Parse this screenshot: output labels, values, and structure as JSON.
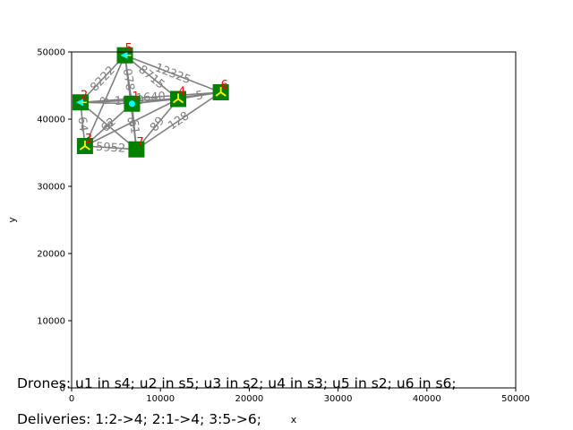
{
  "chart_data": {
    "type": "scatter",
    "title": "",
    "xlabel": "x",
    "ylabel": "y",
    "xlim": [
      0,
      50000
    ],
    "ylim": [
      0,
      50000
    ],
    "xticks": [
      0,
      10000,
      20000,
      30000,
      40000,
      50000
    ],
    "yticks": [
      0,
      10000,
      20000,
      30000,
      40000,
      50000
    ],
    "xtick_labels": [
      "0",
      "10000",
      "20000",
      "30000",
      "40000",
      "50000"
    ],
    "ytick_labels": [
      "0",
      "10000",
      "20000",
      "30000",
      "40000",
      "50000"
    ],
    "grid": false,
    "nodes": [
      {
        "label": "1",
        "x": 6800,
        "y": 42300,
        "marker": "dot"
      },
      {
        "label": "2",
        "x": 1000,
        "y": 42500,
        "marker": "arrow"
      },
      {
        "label": "3",
        "x": 1500,
        "y": 36000,
        "marker": "tri"
      },
      {
        "label": "4",
        "x": 12000,
        "y": 43000,
        "marker": "tri"
      },
      {
        "label": "5",
        "x": 6000,
        "y": 49500,
        "marker": "arrow"
      },
      {
        "label": "6",
        "x": 16800,
        "y": 44000,
        "marker": "tri"
      },
      {
        "label": "7",
        "x": 7300,
        "y": 35500,
        "marker": "none"
      }
    ],
    "edges": [
      {
        "from": "5",
        "to": "6",
        "label": "12325"
      },
      {
        "from": "5",
        "to": "4",
        "label": "8715"
      },
      {
        "from": "5",
        "to": "2",
        "label": "8222"
      },
      {
        "from": "5",
        "to": "1",
        "label": "078"
      },
      {
        "from": "5",
        "to": "3",
        "label": "8"
      },
      {
        "from": "5",
        "to": "7",
        "label": ""
      },
      {
        "from": "2",
        "to": "1",
        "label": ""
      },
      {
        "from": "2",
        "to": "4",
        "label": "1020"
      },
      {
        "from": "2",
        "to": "6",
        "label": "1640"
      },
      {
        "from": "2",
        "to": "3",
        "label": "64"
      },
      {
        "from": "2",
        "to": "7",
        "label": "8"
      },
      {
        "from": "1",
        "to": "4",
        "label": ""
      },
      {
        "from": "1",
        "to": "6",
        "label": "44"
      },
      {
        "from": "1",
        "to": "3",
        "label": "62"
      },
      {
        "from": "1",
        "to": "7",
        "label": "61"
      },
      {
        "from": "3",
        "to": "7",
        "label": "5952"
      },
      {
        "from": "3",
        "to": "4",
        "label": "8"
      },
      {
        "from": "7",
        "to": "4",
        "label": "89"
      },
      {
        "from": "7",
        "to": "6",
        "label": "128"
      },
      {
        "from": "4",
        "to": "6",
        "label": "5"
      }
    ],
    "colors": {
      "station_fill": "#008000",
      "edge": "#808080",
      "node_label": "#ff0000",
      "marker_yellow": "#ffff00",
      "marker_cyan": "#00ffff"
    }
  },
  "captions": {
    "drones": "Drones: u1 in s4; u2 in s5; u3 in s2; u4 in s3; u5 in s2; u6 in s6;",
    "deliveries": "Deliveries: 1:2->4; 2:1->4; 3:5->6;"
  }
}
